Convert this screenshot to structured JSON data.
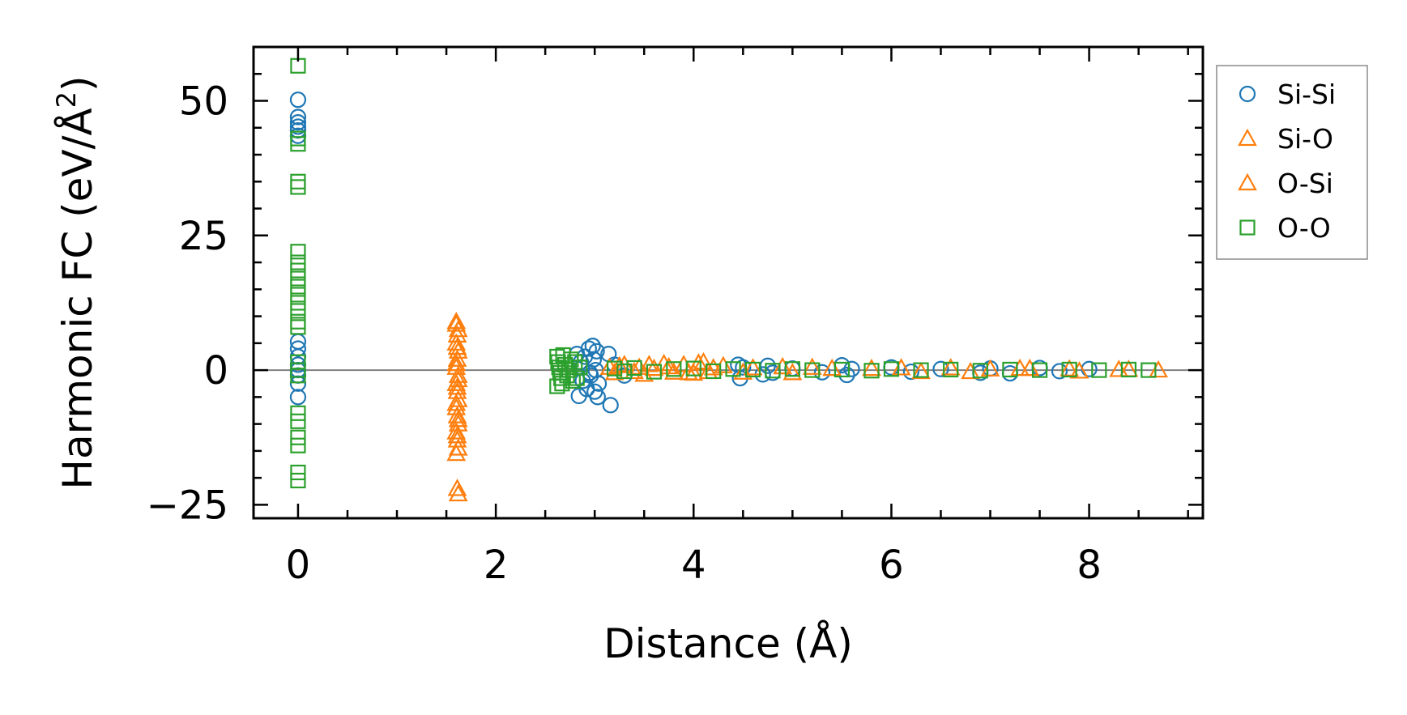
{
  "chart_data": {
    "type": "scatter",
    "xlabel": "Distance (Å)",
    "ylabel_main": "Harmonic FC (eV/Å",
    "ylabel_sup": "2",
    "ylabel_close": ")",
    "xlim": [
      -0.45,
      9.15
    ],
    "ylim": [
      -27.5,
      60
    ],
    "x_ticks": [
      0,
      2,
      4,
      6,
      8
    ],
    "x_tick_labels": [
      "0",
      "2",
      "4",
      "6",
      "8"
    ],
    "x_minor_step": 0.5,
    "y_ticks": [
      -25,
      0,
      25,
      50
    ],
    "y_tick_labels": [
      "−25",
      "0",
      "25",
      "50"
    ],
    "y_minor_step": 5,
    "zero_line": true,
    "grid": false,
    "legend_position": "outside-right-top",
    "series": [
      {
        "name": "Si-Si",
        "marker": "circle",
        "color": "#1f77b4",
        "points": [
          [
            0,
            50.2
          ],
          [
            0,
            47.0
          ],
          [
            0,
            46.0
          ],
          [
            0,
            45.2
          ],
          [
            0,
            44.5
          ],
          [
            0,
            43.5
          ],
          [
            0,
            5.3
          ],
          [
            0,
            4.0
          ],
          [
            0,
            2.5
          ],
          [
            0,
            1.0
          ],
          [
            0,
            0.0
          ],
          [
            0,
            -1.0
          ],
          [
            0,
            -2.5
          ],
          [
            0,
            -5.0
          ],
          [
            2.82,
            3.0
          ],
          [
            2.84,
            -4.8
          ],
          [
            2.86,
            1.5
          ],
          [
            2.88,
            -2.0
          ],
          [
            2.9,
            2.5
          ],
          [
            2.92,
            -3.5
          ],
          [
            2.94,
            4.0
          ],
          [
            2.96,
            -1.0
          ],
          [
            2.98,
            4.5
          ],
          [
            3.0,
            -4.0
          ],
          [
            3.02,
            3.5
          ],
          [
            3.04,
            -2.5
          ],
          [
            2.87,
            0.5
          ],
          [
            2.95,
            -0.5
          ],
          [
            3.01,
            0.0
          ],
          [
            2.99,
            2.0
          ],
          [
            3.03,
            -5.0
          ],
          [
            3.14,
            3.0
          ],
          [
            3.16,
            -6.5
          ],
          [
            3.2,
            1.0
          ],
          [
            3.3,
            -1.0
          ],
          [
            4.45,
            1.0
          ],
          [
            4.47,
            -1.5
          ],
          [
            4.5,
            0.5
          ],
          [
            4.7,
            -0.8
          ],
          [
            4.75,
            0.8
          ],
          [
            4.8,
            -0.5
          ],
          [
            5.0,
            0.3
          ],
          [
            5.3,
            -0.4
          ],
          [
            5.5,
            0.9
          ],
          [
            5.55,
            -0.9
          ],
          [
            5.6,
            0.2
          ],
          [
            6.0,
            0.5
          ],
          [
            6.2,
            -0.3
          ],
          [
            6.5,
            0.2
          ],
          [
            6.9,
            -0.5
          ],
          [
            7.0,
            0.3
          ],
          [
            7.2,
            -0.6
          ],
          [
            7.5,
            0.4
          ],
          [
            7.7,
            -0.2
          ],
          [
            8.0,
            0.2
          ]
        ]
      },
      {
        "name": "Si-O",
        "marker": "triangle",
        "color": "#ff7f0e",
        "points": [
          [
            1.6,
            8.5
          ],
          [
            1.61,
            6.5
          ],
          [
            1.6,
            5.0
          ],
          [
            1.62,
            3.5
          ],
          [
            1.61,
            2.0
          ],
          [
            1.6,
            0.5
          ],
          [
            1.62,
            -1.0
          ],
          [
            1.6,
            -2.5
          ],
          [
            1.61,
            -4.0
          ],
          [
            1.62,
            -5.5
          ],
          [
            1.6,
            -7.0
          ],
          [
            1.61,
            -8.5
          ],
          [
            1.62,
            -10.0
          ],
          [
            1.6,
            -11.5
          ],
          [
            1.61,
            -13.0
          ],
          [
            1.62,
            -14.5
          ],
          [
            1.61,
            -22.0
          ],
          [
            1.62,
            -23.0
          ],
          [
            3.15,
            0.5
          ],
          [
            3.2,
            -0.5
          ],
          [
            3.3,
            1.0
          ],
          [
            3.45,
            0.5
          ],
          [
            3.5,
            -0.8
          ],
          [
            3.6,
            0.3
          ],
          [
            3.7,
            1.2
          ],
          [
            3.8,
            -0.4
          ],
          [
            3.9,
            1.0
          ],
          [
            4.0,
            -0.6
          ],
          [
            4.1,
            1.5
          ],
          [
            4.15,
            -0.3
          ],
          [
            4.3,
            0.8
          ],
          [
            4.6,
            0.4
          ],
          [
            5.0,
            -0.5
          ],
          [
            5.2,
            0.5
          ],
          [
            5.8,
            0.3
          ],
          [
            6.3,
            -0.3
          ],
          [
            6.6,
            0.4
          ],
          [
            7.0,
            0.2
          ],
          [
            7.4,
            0.3
          ],
          [
            7.9,
            -0.2
          ],
          [
            8.4,
            0.1
          ]
        ]
      },
      {
        "name": "O-Si",
        "marker": "triangle",
        "color": "#ff7f0e",
        "points": [
          [
            1.6,
            9.0
          ],
          [
            1.62,
            7.5
          ],
          [
            1.61,
            4.2
          ],
          [
            1.6,
            1.2
          ],
          [
            1.62,
            -1.8
          ],
          [
            1.61,
            -3.2
          ],
          [
            1.6,
            -6.2
          ],
          [
            1.62,
            -9.2
          ],
          [
            1.61,
            -12.2
          ],
          [
            1.6,
            -15.5
          ],
          [
            3.25,
            0.8
          ],
          [
            3.4,
            -0.3
          ],
          [
            3.55,
            1.0
          ],
          [
            3.75,
            0.6
          ],
          [
            3.95,
            -0.5
          ],
          [
            4.05,
            1.3
          ],
          [
            4.2,
            0.4
          ],
          [
            4.5,
            -0.4
          ],
          [
            4.9,
            0.6
          ],
          [
            5.4,
            0.3
          ],
          [
            6.1,
            0.4
          ],
          [
            6.8,
            -0.3
          ],
          [
            7.3,
            0.3
          ],
          [
            7.8,
            0.2
          ],
          [
            8.3,
            0.1
          ],
          [
            8.7,
            0.0
          ]
        ]
      },
      {
        "name": "O-O",
        "marker": "square",
        "color": "#2ca02c",
        "points": [
          [
            0,
            56.5
          ],
          [
            0,
            43.0
          ],
          [
            0,
            42.0
          ],
          [
            0,
            35.0
          ],
          [
            0,
            34.0
          ],
          [
            0,
            22.0
          ],
          [
            0,
            20.0
          ],
          [
            0,
            18.5
          ],
          [
            0,
            17.0
          ],
          [
            0,
            15.5
          ],
          [
            0,
            14.0
          ],
          [
            0,
            12.5
          ],
          [
            0,
            11.0
          ],
          [
            0,
            9.0
          ],
          [
            0,
            8.0
          ],
          [
            0,
            1.5
          ],
          [
            0,
            0.0
          ],
          [
            0,
            -1.0
          ],
          [
            0,
            -8.0
          ],
          [
            0,
            -9.5
          ],
          [
            0,
            -12.5
          ],
          [
            0,
            -14.0
          ],
          [
            0,
            -19.0
          ],
          [
            0,
            -20.5
          ],
          [
            2.62,
            2.5
          ],
          [
            2.63,
            1.5
          ],
          [
            2.64,
            0.5
          ],
          [
            2.65,
            -0.5
          ],
          [
            2.66,
            -1.5
          ],
          [
            2.67,
            -2.5
          ],
          [
            2.62,
            -3.0
          ],
          [
            2.68,
            2.8
          ],
          [
            2.7,
            1.0
          ],
          [
            2.72,
            -1.0
          ],
          [
            2.74,
            0.0
          ],
          [
            2.76,
            2.0
          ],
          [
            2.78,
            -2.0
          ],
          [
            2.8,
            1.5
          ],
          [
            2.82,
            -1.5
          ],
          [
            2.85,
            0.5
          ],
          [
            3.2,
            0.3
          ],
          [
            3.3,
            -0.2
          ],
          [
            3.4,
            0.4
          ],
          [
            3.6,
            -0.3
          ],
          [
            3.8,
            0.2
          ],
          [
            4.0,
            0.3
          ],
          [
            4.2,
            -0.2
          ],
          [
            4.4,
            0.2
          ],
          [
            4.6,
            0.1
          ],
          [
            4.8,
            -0.1
          ],
          [
            5.0,
            0.2
          ],
          [
            5.2,
            0.0
          ],
          [
            5.5,
            0.1
          ],
          [
            5.8,
            -0.1
          ],
          [
            6.0,
            0.2
          ],
          [
            6.3,
            0.0
          ],
          [
            6.6,
            0.1
          ],
          [
            6.9,
            -0.1
          ],
          [
            7.2,
            0.1
          ],
          [
            7.5,
            0.0
          ],
          [
            7.8,
            0.1
          ],
          [
            8.1,
            0.0
          ],
          [
            8.4,
            0.1
          ],
          [
            8.6,
            0.0
          ]
        ]
      }
    ]
  }
}
